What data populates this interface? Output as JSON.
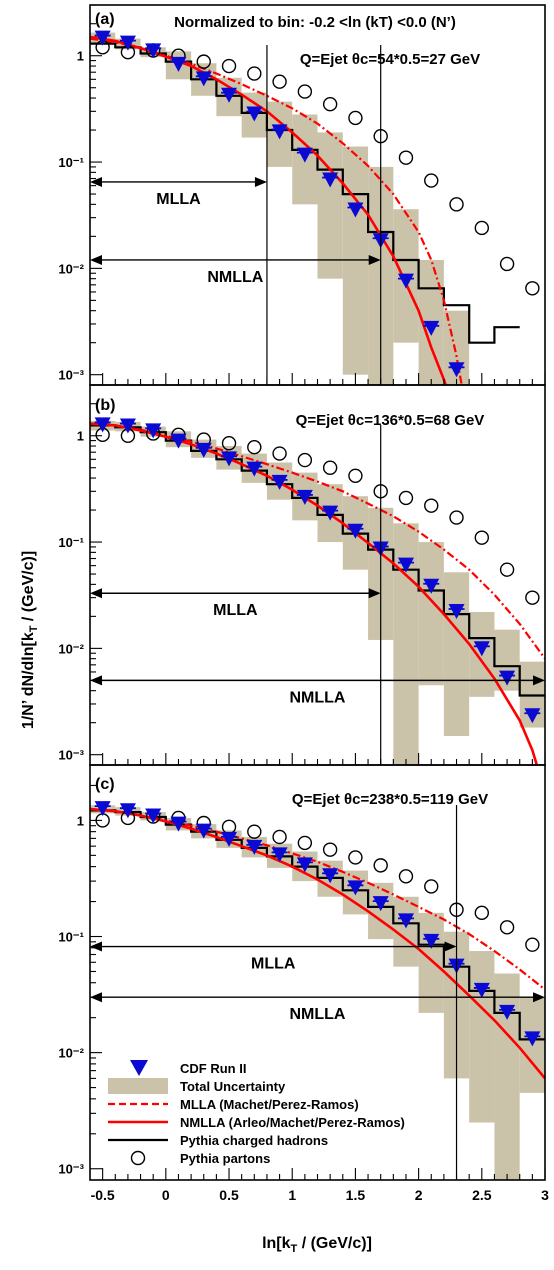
{
  "figure": {
    "ylabel": "1/N’ dN/dln[kT / (GeV/c)]",
    "xlabel": "ln[kT / (GeV/c)]",
    "colors": {
      "band": "#cbc3a9",
      "data": "#0a0ad2",
      "nmlla": "#ff0000",
      "mlla": "#ff0000",
      "pythia_hadrons": "#000000",
      "pythia_partons": "#000000"
    }
  },
  "legend": {
    "placement": "bottom-left of panel (c)",
    "entries": [
      {
        "label": "CDF Run II",
        "symbol": "down-triangle-marker"
      },
      {
        "label": "Total Uncertainty",
        "symbol": "filled-box"
      },
      {
        "label": "MLLA (Machet/Perez-Ramos)",
        "symbol": "dashed-red-line"
      },
      {
        "label": "NMLLA (Arleo/Machet/Perez-Ramos)",
        "symbol": "solid-red-line"
      },
      {
        "label": "Pythia charged hadrons",
        "symbol": "solid-black-line"
      },
      {
        "label": "Pythia partons",
        "symbol": "open-circle"
      }
    ]
  },
  "chart_data": [
    {
      "type": "line",
      "panel_label": "(a)",
      "title": "Normalized to bin: -0.2 <ln (kT) <0.0 (N’)",
      "subtitle": "Q=Ejet  θc=54*0.5=27 GeV",
      "xlim": [
        -0.6,
        3.0
      ],
      "ylim": [
        0.0008,
        3.0
      ],
      "yscale": "log",
      "yticks": [
        "10⁻³",
        "10⁻²",
        "10⁻¹",
        "1"
      ],
      "arrows": [
        {
          "label": "MLLA",
          "x_start": -0.6,
          "x_end": 0.8,
          "y": 0.065
        },
        {
          "label": "NMLLA",
          "x_start": -0.6,
          "x_end": 1.7,
          "y": 0.012
        }
      ],
      "vlines": [
        0.8,
        1.7
      ],
      "series": {
        "cdf": {
          "x": [
            -0.5,
            -0.3,
            -0.1,
            0.1,
            0.3,
            0.5,
            0.7,
            0.9,
            1.1,
            1.3,
            1.5,
            1.7,
            1.9,
            2.1,
            2.3
          ],
          "y": [
            1.45,
            1.3,
            1.1,
            0.82,
            0.6,
            0.42,
            0.28,
            0.19,
            0.115,
            0.067,
            0.035,
            0.018,
            0.0075,
            0.0027,
            0.0011
          ]
        },
        "band": {
          "edges": [
            -0.6,
            -0.4,
            -0.2,
            0.0,
            0.2,
            0.4,
            0.6,
            0.8,
            1.0,
            1.2,
            1.4,
            1.6,
            1.8,
            2.0,
            2.2,
            2.4
          ],
          "lo": [
            1.3,
            1.15,
            0.97,
            0.6,
            0.42,
            0.27,
            0.17,
            0.09,
            0.04,
            0.008,
            0.001,
            0.0008,
            0.002,
            0.0008,
            0.0008
          ],
          "hi": [
            1.65,
            1.45,
            1.2,
            1.1,
            0.85,
            0.62,
            0.45,
            0.37,
            0.28,
            0.19,
            0.14,
            0.09,
            0.036,
            0.012,
            0.004
          ]
        },
        "pythia_hadrons": {
          "edges": [
            -0.6,
            -0.4,
            -0.2,
            0.0,
            0.2,
            0.4,
            0.6,
            0.8,
            1.0,
            1.2,
            1.4,
            1.6,
            1.8,
            2.0,
            2.2,
            2.4,
            2.6,
            2.8
          ],
          "values": [
            1.3,
            1.2,
            1.05,
            0.88,
            0.6,
            0.42,
            0.29,
            0.2,
            0.13,
            0.085,
            0.05,
            0.022,
            0.012,
            0.0065,
            0.0045,
            0.002,
            0.0028
          ]
        },
        "nmlla": {
          "x": [
            -0.6,
            -0.4,
            -0.2,
            0.0,
            0.2,
            0.4,
            0.6,
            0.8,
            1.0,
            1.2,
            1.4,
            1.6,
            1.8,
            2.0,
            2.1,
            2.2,
            2.25
          ],
          "y": [
            1.5,
            1.38,
            1.18,
            0.98,
            0.8,
            0.6,
            0.43,
            0.3,
            0.19,
            0.115,
            0.063,
            0.032,
            0.013,
            0.004,
            0.0018,
            0.0009,
            0.0006
          ]
        },
        "mlla": {
          "x": [
            -0.6,
            -0.4,
            -0.2,
            0.0,
            0.2,
            0.4,
            0.6,
            0.8,
            1.0,
            1.2,
            1.4,
            1.6,
            1.8,
            2.0,
            2.1,
            2.2,
            2.3,
            2.35
          ],
          "y": [
            1.45,
            1.34,
            1.18,
            1.0,
            0.84,
            0.68,
            0.54,
            0.42,
            0.32,
            0.23,
            0.15,
            0.092,
            0.05,
            0.022,
            0.012,
            0.005,
            0.0015,
            0.0007
          ]
        },
        "partons": {
          "x": [
            -0.5,
            -0.3,
            -0.1,
            0.1,
            0.3,
            0.5,
            0.7,
            0.9,
            1.1,
            1.3,
            1.5,
            1.7,
            1.9,
            2.1,
            2.3,
            2.5,
            2.7,
            2.9
          ],
          "y": [
            1.2,
            1.08,
            1.12,
            1.0,
            0.88,
            0.8,
            0.68,
            0.57,
            0.46,
            0.35,
            0.26,
            0.175,
            0.11,
            0.067,
            0.04,
            0.024,
            0.011,
            0.0065
          ]
        }
      }
    },
    {
      "type": "line",
      "panel_label": "(b)",
      "subtitle": "Q=Ejet  θc=136*0.5=68 GeV",
      "xlim": [
        -0.6,
        3.0
      ],
      "ylim": [
        0.0008,
        3.0
      ],
      "yscale": "log",
      "yticks": [
        "10⁻³",
        "10⁻²",
        "10⁻¹",
        "1"
      ],
      "arrows": [
        {
          "label": "MLLA",
          "x_start": -0.6,
          "x_end": 1.7,
          "y": 0.033
        },
        {
          "label": "NMLLA",
          "x_start": -0.6,
          "x_end": 3.0,
          "y": 0.005
        }
      ],
      "vlines": [
        1.7
      ],
      "series": {
        "cdf": {
          "x": [
            -0.5,
            -0.3,
            -0.1,
            0.1,
            0.3,
            0.5,
            0.7,
            0.9,
            1.1,
            1.3,
            1.5,
            1.7,
            1.9,
            2.1,
            2.3,
            2.5,
            2.7,
            2.9
          ],
          "y": [
            1.25,
            1.22,
            1.1,
            0.88,
            0.72,
            0.6,
            0.48,
            0.36,
            0.26,
            0.185,
            0.125,
            0.085,
            0.06,
            0.038,
            0.022,
            0.0098,
            0.0052,
            0.0023
          ]
        },
        "band": {
          "edges": [
            -0.6,
            -0.4,
            -0.2,
            0.0,
            0.2,
            0.4,
            0.6,
            0.8,
            1.0,
            1.2,
            1.4,
            1.6,
            1.8,
            2.0,
            2.2,
            2.4,
            2.6,
            2.8,
            3.0
          ],
          "lo": [
            1.12,
            1.1,
            0.98,
            0.78,
            0.62,
            0.48,
            0.36,
            0.25,
            0.16,
            0.1,
            0.055,
            0.012,
            0.0008,
            0.0045,
            0.0015,
            0.0035,
            0.004,
            0.0018
          ],
          "hi": [
            1.38,
            1.35,
            1.22,
            1.1,
            0.92,
            0.8,
            0.68,
            0.56,
            0.45,
            0.35,
            0.27,
            0.21,
            0.15,
            0.1,
            0.052,
            0.022,
            0.015,
            0.0075
          ]
        },
        "pythia_hadrons": {
          "edges": [
            -0.6,
            -0.4,
            -0.2,
            0.0,
            0.2,
            0.4,
            0.6,
            0.8,
            1.0,
            1.2,
            1.4,
            1.6,
            1.8,
            2.0,
            2.2,
            2.4,
            2.6,
            2.8,
            3.0
          ],
          "values": [
            1.25,
            1.2,
            1.08,
            0.9,
            0.72,
            0.6,
            0.47,
            0.35,
            0.26,
            0.18,
            0.12,
            0.085,
            0.055,
            0.035,
            0.021,
            0.0125,
            0.0068,
            0.0036
          ]
        },
        "nmlla": {
          "x": [
            -0.6,
            -0.4,
            -0.2,
            0.0,
            0.2,
            0.4,
            0.6,
            0.8,
            1.0,
            1.2,
            1.4,
            1.6,
            1.8,
            2.0,
            2.2,
            2.4,
            2.6,
            2.8,
            2.9,
            2.95
          ],
          "y": [
            1.3,
            1.25,
            1.12,
            0.98,
            0.83,
            0.68,
            0.54,
            0.42,
            0.31,
            0.22,
            0.15,
            0.098,
            0.063,
            0.038,
            0.021,
            0.011,
            0.0052,
            0.0021,
            0.0011,
            0.0007
          ]
        },
        "mlla": {
          "x": [
            -0.6,
            -0.4,
            -0.2,
            0.0,
            0.2,
            0.4,
            0.6,
            0.8,
            1.0,
            1.2,
            1.4,
            1.6,
            1.8,
            2.0,
            2.2,
            2.4,
            2.6,
            2.8,
            3.0
          ],
          "y": [
            1.3,
            1.25,
            1.14,
            1.0,
            0.88,
            0.76,
            0.64,
            0.54,
            0.45,
            0.37,
            0.3,
            0.23,
            0.175,
            0.125,
            0.085,
            0.055,
            0.032,
            0.017,
            0.008
          ]
        },
        "partons": {
          "x": [
            -0.5,
            -0.3,
            -0.1,
            0.1,
            0.3,
            0.5,
            0.7,
            0.9,
            1.1,
            1.3,
            1.5,
            1.7,
            1.9,
            2.1,
            2.3,
            2.5,
            2.7,
            2.9
          ],
          "y": [
            1.02,
            1.0,
            1.05,
            1.02,
            0.92,
            0.85,
            0.78,
            0.68,
            0.59,
            0.5,
            0.42,
            0.3,
            0.26,
            0.22,
            0.17,
            0.11,
            0.055,
            0.03
          ]
        }
      }
    },
    {
      "type": "line",
      "panel_label": "(c)",
      "subtitle": "Q=Ejet  θc=238*0.5=119 GeV",
      "xlabel": "ln[kT / (GeV/c)]",
      "xlim": [
        -0.6,
        3.0
      ],
      "ylim": [
        0.0008,
        3.0
      ],
      "yscale": "log",
      "xticks": [
        "-0.5",
        "0",
        "0.5",
        "1",
        "1.5",
        "2",
        "2.5",
        "3"
      ],
      "yticks": [
        "10⁻³",
        "10⁻²",
        "10⁻¹",
        "1"
      ],
      "arrows": [
        {
          "label": "MLLA",
          "x_start": -0.6,
          "x_end": 2.3,
          "y": 0.082
        },
        {
          "label": "NMLLA",
          "x_start": -0.6,
          "x_end": 3.0,
          "y": 0.03
        }
      ],
      "vlines": [
        2.3
      ],
      "series": {
        "cdf": {
          "x": [
            -0.5,
            -0.3,
            -0.1,
            0.1,
            0.3,
            0.5,
            0.7,
            0.9,
            1.1,
            1.3,
            1.5,
            1.7,
            1.9,
            2.1,
            2.3,
            2.5,
            2.7,
            2.9
          ],
          "y": [
            1.25,
            1.2,
            1.08,
            0.92,
            0.8,
            0.68,
            0.58,
            0.5,
            0.41,
            0.33,
            0.26,
            0.19,
            0.135,
            0.09,
            0.055,
            0.034,
            0.022,
            0.013
          ]
        },
        "band": {
          "edges": [
            -0.6,
            -0.4,
            -0.2,
            0.0,
            0.2,
            0.4,
            0.6,
            0.8,
            1.0,
            1.2,
            1.4,
            1.6,
            1.8,
            2.0,
            2.2,
            2.4,
            2.6,
            2.8,
            3.0
          ],
          "lo": [
            1.15,
            1.1,
            1.0,
            0.82,
            0.7,
            0.58,
            0.48,
            0.39,
            0.3,
            0.22,
            0.155,
            0.095,
            0.055,
            0.022,
            0.006,
            0.0025,
            0.0008,
            0.0045
          ],
          "hi": [
            1.35,
            1.3,
            1.18,
            1.05,
            0.93,
            0.82,
            0.72,
            0.63,
            0.54,
            0.45,
            0.37,
            0.29,
            0.22,
            0.16,
            0.11,
            0.075,
            0.048,
            0.03
          ]
        },
        "pythia_hadrons": {
          "edges": [
            -0.6,
            -0.4,
            -0.2,
            0.0,
            0.2,
            0.4,
            0.6,
            0.8,
            1.0,
            1.2,
            1.4,
            1.6,
            1.8,
            2.0,
            2.2,
            2.4,
            2.6,
            2.8,
            3.0
          ],
          "values": [
            1.22,
            1.18,
            1.07,
            0.92,
            0.8,
            0.68,
            0.58,
            0.49,
            0.4,
            0.32,
            0.25,
            0.18,
            0.13,
            0.085,
            0.055,
            0.034,
            0.022,
            0.013
          ]
        },
        "nmlla": {
          "x": [
            -0.6,
            -0.4,
            -0.2,
            0.0,
            0.2,
            0.4,
            0.6,
            0.8,
            1.0,
            1.2,
            1.4,
            1.6,
            1.8,
            2.0,
            2.2,
            2.4,
            2.6,
            2.8,
            3.0
          ],
          "y": [
            1.25,
            1.2,
            1.1,
            0.98,
            0.85,
            0.72,
            0.6,
            0.5,
            0.4,
            0.31,
            0.23,
            0.165,
            0.115,
            0.078,
            0.05,
            0.031,
            0.019,
            0.011,
            0.006
          ]
        },
        "mlla": {
          "x": [
            -0.6,
            -0.4,
            -0.2,
            0.0,
            0.2,
            0.4,
            0.6,
            0.8,
            1.0,
            1.2,
            1.4,
            1.6,
            1.8,
            2.0,
            2.2,
            2.4,
            2.6,
            2.8,
            3.0
          ],
          "y": [
            1.25,
            1.2,
            1.1,
            1.0,
            0.9,
            0.8,
            0.7,
            0.61,
            0.52,
            0.44,
            0.36,
            0.29,
            0.23,
            0.18,
            0.14,
            0.105,
            0.075,
            0.052,
            0.035
          ]
        },
        "partons": {
          "x": [
            -0.5,
            -0.3,
            -0.1,
            0.1,
            0.3,
            0.5,
            0.7,
            0.9,
            1.1,
            1.3,
            1.5,
            1.7,
            1.9,
            2.1,
            2.3,
            2.5,
            2.7,
            2.9
          ],
          "y": [
            1.0,
            1.05,
            1.08,
            1.05,
            0.95,
            0.88,
            0.8,
            0.72,
            0.64,
            0.56,
            0.48,
            0.41,
            0.33,
            0.27,
            0.17,
            0.16,
            0.12,
            0.085
          ]
        }
      }
    }
  ]
}
